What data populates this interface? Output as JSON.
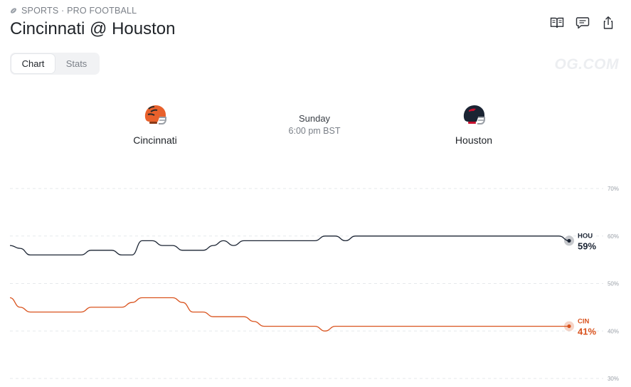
{
  "header": {
    "category": "SPORTS · PRO FOOTBALL",
    "title": "Cincinnati @ Houston"
  },
  "icons": {
    "category": "football-icon",
    "actions": [
      "rules-book-icon",
      "comment-icon",
      "share-icon"
    ]
  },
  "tabs": [
    {
      "label": "Chart",
      "active": true
    },
    {
      "label": "Stats",
      "active": false
    }
  ],
  "watermark": "OG.COM",
  "game": {
    "away": {
      "name": "Cincinnati",
      "helmet_color": "#e8612c"
    },
    "home": {
      "name": "Houston",
      "helmet_color": "#1b2433"
    },
    "day": "Sunday",
    "time": "6:00 pm BST"
  },
  "chart_data": {
    "type": "line",
    "ylim": [
      30,
      70
    ],
    "yticks": [
      "70%",
      "60%",
      "50%",
      "40%",
      "30%"
    ],
    "grid": true,
    "series": [
      {
        "name": "HOU",
        "color": "#1b2433",
        "label": "HOU",
        "value_label": "59%",
        "values": [
          58,
          57.4,
          56,
          56,
          56,
          56,
          56,
          56,
          57,
          57,
          57,
          56,
          56,
          59,
          59,
          58,
          58,
          57,
          57,
          57,
          58,
          59,
          58,
          59,
          59,
          59,
          59,
          59,
          59,
          59,
          59,
          60,
          60,
          59,
          60,
          60,
          60,
          60,
          60,
          60,
          60,
          60,
          60,
          60,
          60,
          60,
          60,
          60,
          60,
          60,
          60,
          60,
          60,
          60,
          60,
          59
        ]
      },
      {
        "name": "CIN",
        "color": "#d9531e",
        "label": "CIN",
        "value_label": "41%",
        "values": [
          47,
          45,
          44,
          44,
          44,
          44,
          44,
          44,
          45,
          45,
          45,
          45,
          46,
          47,
          47,
          47,
          47,
          46,
          44,
          44,
          43,
          43,
          43,
          43,
          42,
          41,
          41,
          41,
          41,
          41,
          41,
          40,
          41,
          41,
          41,
          41,
          41,
          41,
          41,
          41,
          41,
          41,
          41,
          41,
          41,
          41,
          41,
          41,
          41,
          41,
          41,
          41,
          41,
          41,
          41,
          41
        ]
      }
    ]
  }
}
